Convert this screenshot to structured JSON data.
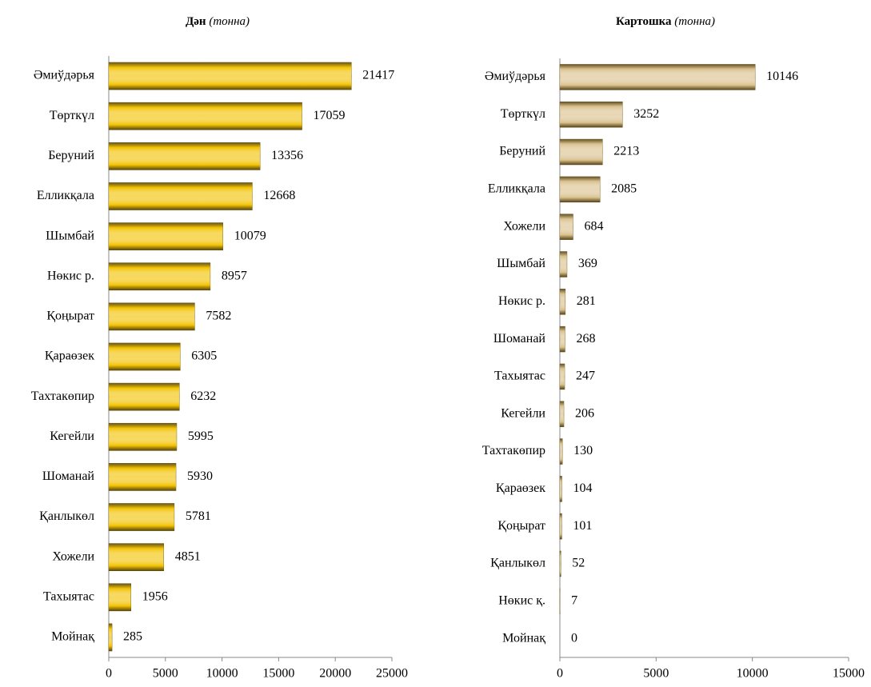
{
  "chart_data": [
    {
      "type": "barh",
      "title": "Дән",
      "title_unit": "(тонна)",
      "categories": [
        "Әмиўдәрья",
        "Төрткүл",
        "Беруний",
        "Елликқала",
        "Шымбай",
        "Нөкис р.",
        "Қоңырат",
        "Қараөзек",
        "Тахтакөпир",
        "Кегейли",
        "Шоманай",
        "Қанлыкөл",
        "Хожели",
        "Тахыятас",
        "Мойнақ"
      ],
      "values": [
        21417,
        17059,
        13356,
        12668,
        10079,
        8957,
        7582,
        6305,
        6232,
        5995,
        5930,
        5781,
        4851,
        1956,
        285
      ],
      "color": "#f2c200",
      "xlim": [
        0,
        25000
      ],
      "xticks": [
        0,
        5000,
        10000,
        15000,
        20000,
        25000
      ]
    },
    {
      "type": "barh",
      "title": "Картошка",
      "title_unit": "(тонна)",
      "categories": [
        "Әмиўдәрья",
        "Төрткүл",
        "Беруний",
        "Елликқала",
        "Хожели",
        "Шымбай",
        "Нөкис р.",
        "Шоманай",
        "Тахыятас",
        "Кегейли",
        "Тахтакөпир",
        "Қараөзек",
        "Қоңырат",
        "Қанлыкөл",
        "Нөкис қ.",
        "Мойнақ"
      ],
      "values": [
        10146,
        3252,
        2213,
        2085,
        684,
        369,
        281,
        268,
        247,
        206,
        130,
        104,
        101,
        52,
        7,
        0
      ],
      "color": "#d9c08c",
      "xlim": [
        0,
        15000
      ],
      "xticks": [
        0,
        5000,
        10000,
        15000
      ]
    }
  ]
}
